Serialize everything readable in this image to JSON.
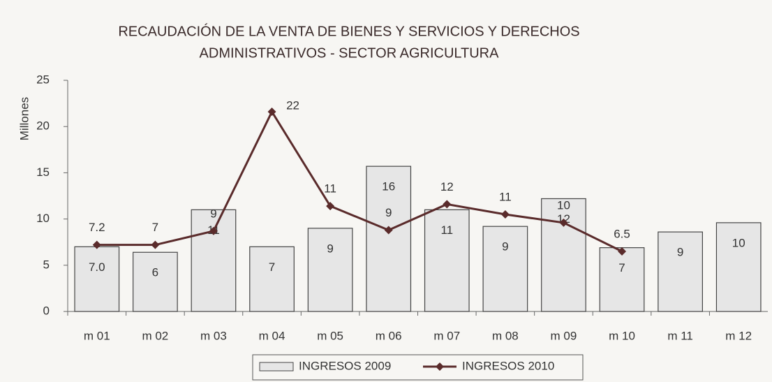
{
  "chart_data": {
    "type": "bar-line",
    "title": [
      "RECAUDACIÓN DE LA VENTA DE BIENES Y SERVICIOS Y DERECHOS",
      "ADMINISTRATIVOS - SECTOR AGRICULTURA"
    ],
    "y_label": "Millones",
    "categories": [
      "m 01",
      "m 02",
      "m 03",
      "m 04",
      "m 05",
      "m 06",
      "m 07",
      "m 08",
      "m 09",
      "m 10",
      "m 11",
      "m 12"
    ],
    "series": [
      {
        "name": "INGRESOS 2009",
        "type": "bar",
        "color": "#e6e6e6",
        "values": [
          7.0,
          6.4,
          11,
          7,
          9,
          15.7,
          11,
          9.2,
          12.2,
          6.9,
          8.6,
          9.6
        ],
        "value_labels": [
          "7.0",
          "6",
          "11",
          "7",
          "9",
          "16",
          "11",
          "9",
          "12",
          "7",
          "9",
          "10"
        ]
      },
      {
        "name": "INGRESOS 2010",
        "type": "line",
        "color": "#5a2b2b",
        "values": [
          7.2,
          7.2,
          8.7,
          21.6,
          11.4,
          8.8,
          11.6,
          10.5,
          9.6,
          6.5,
          null,
          null
        ],
        "value_labels": [
          "7.2",
          "7",
          "9",
          "22",
          "11",
          "9",
          "12",
          "11",
          "10",
          "6.5",
          null,
          null
        ]
      }
    ],
    "ylim": [
      0,
      25
    ],
    "yticks": [
      0,
      5,
      10,
      15,
      20,
      25
    ],
    "legend": "bottom"
  }
}
